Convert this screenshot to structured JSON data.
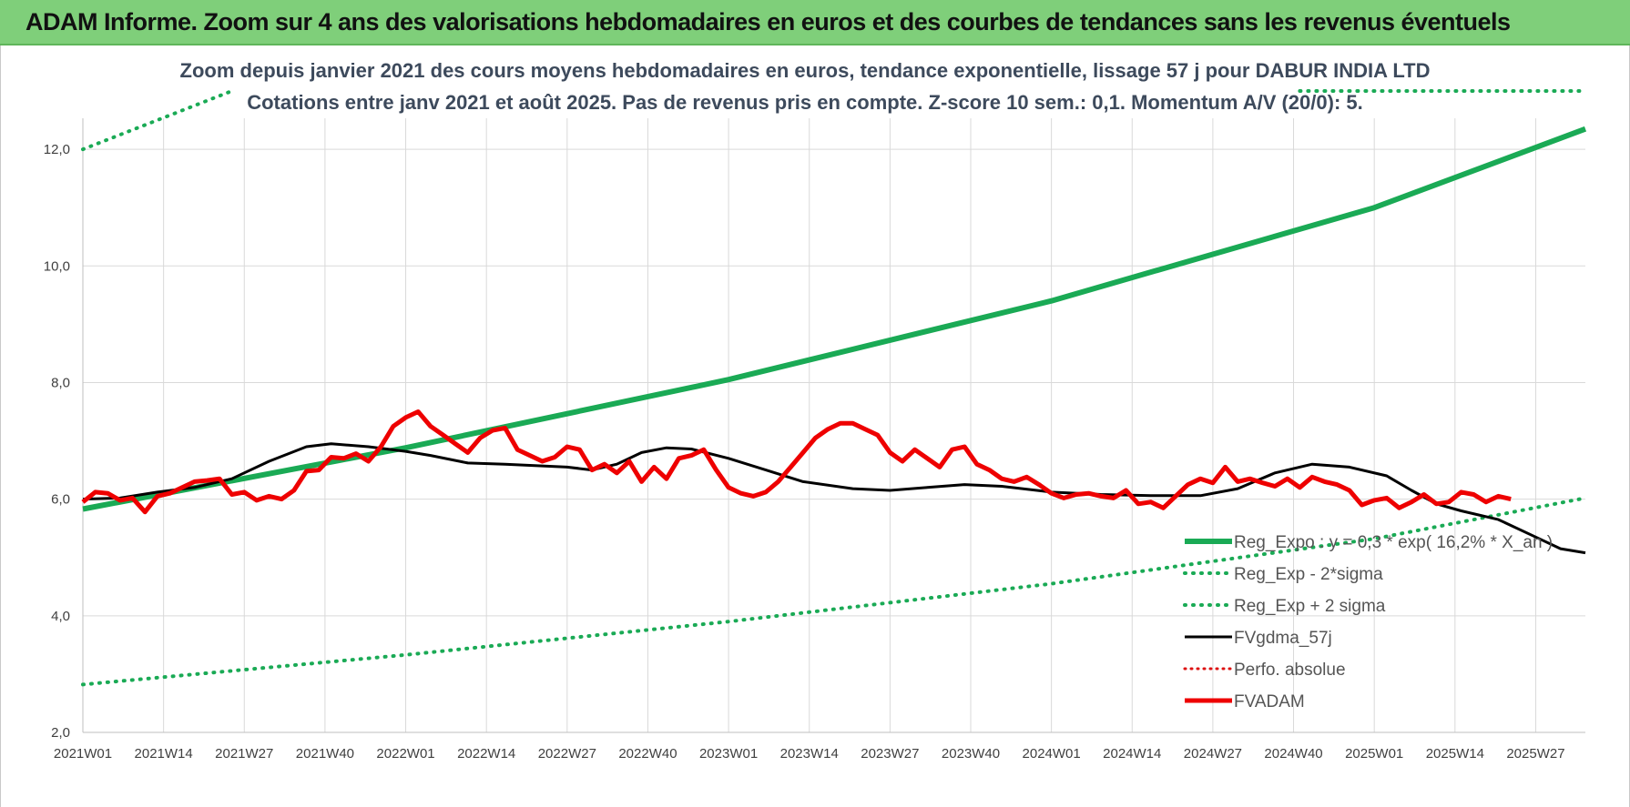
{
  "banner": {
    "title": "ADAM Informe. Zoom sur 4 ans des valorisations hebdomadaires en euros et des courbes de tendances sans les revenus éventuels"
  },
  "colors": {
    "banner": "#7fcf7a",
    "reg_expo": "#1aaa55",
    "sigma": "#1aaa55",
    "fvgdma": "#000000",
    "perfo": "#dd1111",
    "fvadam": "#ee0000",
    "grid": "#d9d9d9"
  },
  "chart_data": {
    "type": "line",
    "title": "Zoom depuis janvier 2021 des cours moyens hebdomadaires en euros, tendance exponentielle, lissage 57 j pour DABUR INDIA LTD",
    "subtitle": "Cotations entre janv 2021 et août 2025. Pas de revenus pris en compte. Z-score 10 sem.: 0,1. Momentum A/V (20/0): 5.",
    "xlabel": "",
    "ylabel": "",
    "grid": true,
    "legend_position": "bottom-right",
    "ylim": [
      2,
      13
    ],
    "y_ticks": [
      "2,0",
      "4,0",
      "6,0",
      "8,0",
      "10,0",
      "12,0"
    ],
    "y_tick_values": [
      2,
      4,
      6,
      8,
      10,
      12
    ],
    "x_ticks": [
      "2021W01",
      "2021W14",
      "2021W27",
      "2021W40",
      "2022W01",
      "2022W14",
      "2022W27",
      "2022W40",
      "2023W01",
      "2023W14",
      "2023W27",
      "2023W40",
      "2024W01",
      "2024W14",
      "2024W27",
      "2024W40",
      "2025W01",
      "2025W14",
      "2025W27"
    ],
    "weeks_count": 243,
    "series": [
      {
        "name": "Reg_Expo : y = 0,3 * exp( 16,2% * X_an )",
        "style": "solid-thick",
        "points": [
          [
            0,
            5.83
          ],
          [
            52,
            6.88
          ],
          [
            104,
            8.05
          ],
          [
            156,
            9.4
          ],
          [
            208,
            11.0
          ],
          [
            242,
            12.35
          ]
        ]
      },
      {
        "name": "Reg_Exp - 2*sigma",
        "style": "dotted",
        "points": [
          [
            0,
            2.82
          ],
          [
            52,
            3.33
          ],
          [
            104,
            3.9
          ],
          [
            156,
            4.55
          ],
          [
            208,
            5.32
          ],
          [
            242,
            6.02
          ]
        ]
      },
      {
        "name": "Reg_Exp + 2 sigma",
        "style": "dotted",
        "points": [
          [
            0,
            12.0
          ],
          [
            24,
            13.0
          ]
        ],
        "points_right": [
          [
            196,
            13.0
          ],
          [
            242,
            13.0
          ]
        ]
      },
      {
        "name": "FVgdma_57j",
        "style": "solid",
        "points": [
          [
            0,
            6.0
          ],
          [
            6,
            6.02
          ],
          [
            12,
            6.12
          ],
          [
            18,
            6.2
          ],
          [
            24,
            6.35
          ],
          [
            30,
            6.65
          ],
          [
            36,
            6.9
          ],
          [
            40,
            6.95
          ],
          [
            46,
            6.9
          ],
          [
            52,
            6.82
          ],
          [
            56,
            6.75
          ],
          [
            62,
            6.62
          ],
          [
            68,
            6.6
          ],
          [
            72,
            6.58
          ],
          [
            78,
            6.55
          ],
          [
            82,
            6.5
          ],
          [
            86,
            6.6
          ],
          [
            90,
            6.8
          ],
          [
            94,
            6.88
          ],
          [
            98,
            6.86
          ],
          [
            104,
            6.7
          ],
          [
            110,
            6.5
          ],
          [
            116,
            6.3
          ],
          [
            124,
            6.18
          ],
          [
            130,
            6.15
          ],
          [
            136,
            6.2
          ],
          [
            142,
            6.25
          ],
          [
            148,
            6.22
          ],
          [
            156,
            6.12
          ],
          [
            164,
            6.08
          ],
          [
            172,
            6.06
          ],
          [
            180,
            6.06
          ],
          [
            186,
            6.18
          ],
          [
            192,
            6.45
          ],
          [
            198,
            6.6
          ],
          [
            204,
            6.55
          ],
          [
            210,
            6.4
          ],
          [
            214,
            6.15
          ],
          [
            218,
            5.92
          ],
          [
            222,
            5.8
          ],
          [
            228,
            5.65
          ],
          [
            234,
            5.35
          ],
          [
            238,
            5.15
          ],
          [
            242,
            5.08
          ]
        ]
      },
      {
        "name": "Perfo. absolue",
        "style": "dotted-red",
        "points": []
      },
      {
        "name": "FVADAM",
        "style": "solid-thick",
        "points": [
          [
            0,
            5.95
          ],
          [
            2,
            6.12
          ],
          [
            4,
            6.1
          ],
          [
            6,
            5.98
          ],
          [
            8,
            6.02
          ],
          [
            10,
            5.78
          ],
          [
            12,
            6.05
          ],
          [
            14,
            6.1
          ],
          [
            16,
            6.2
          ],
          [
            18,
            6.3
          ],
          [
            20,
            6.32
          ],
          [
            22,
            6.35
          ],
          [
            24,
            6.08
          ],
          [
            26,
            6.12
          ],
          [
            28,
            5.98
          ],
          [
            30,
            6.05
          ],
          [
            32,
            6.0
          ],
          [
            34,
            6.15
          ],
          [
            36,
            6.48
          ],
          [
            38,
            6.5
          ],
          [
            40,
            6.72
          ],
          [
            42,
            6.7
          ],
          [
            44,
            6.78
          ],
          [
            46,
            6.65
          ],
          [
            48,
            6.9
          ],
          [
            50,
            7.25
          ],
          [
            52,
            7.4
          ],
          [
            54,
            7.5
          ],
          [
            56,
            7.25
          ],
          [
            58,
            7.1
          ],
          [
            60,
            6.95
          ],
          [
            62,
            6.8
          ],
          [
            64,
            7.05
          ],
          [
            66,
            7.18
          ],
          [
            68,
            7.22
          ],
          [
            70,
            6.85
          ],
          [
            72,
            6.75
          ],
          [
            74,
            6.65
          ],
          [
            76,
            6.72
          ],
          [
            78,
            6.9
          ],
          [
            80,
            6.85
          ],
          [
            82,
            6.5
          ],
          [
            84,
            6.6
          ],
          [
            86,
            6.45
          ],
          [
            88,
            6.65
          ],
          [
            90,
            6.3
          ],
          [
            92,
            6.55
          ],
          [
            94,
            6.35
          ],
          [
            96,
            6.7
          ],
          [
            98,
            6.75
          ],
          [
            100,
            6.85
          ],
          [
            102,
            6.5
          ],
          [
            104,
            6.2
          ],
          [
            106,
            6.1
          ],
          [
            108,
            6.05
          ],
          [
            110,
            6.12
          ],
          [
            112,
            6.3
          ],
          [
            114,
            6.55
          ],
          [
            116,
            6.8
          ],
          [
            118,
            7.05
          ],
          [
            120,
            7.2
          ],
          [
            122,
            7.3
          ],
          [
            124,
            7.3
          ],
          [
            126,
            7.2
          ],
          [
            128,
            7.1
          ],
          [
            130,
            6.8
          ],
          [
            132,
            6.65
          ],
          [
            134,
            6.85
          ],
          [
            136,
            6.7
          ],
          [
            138,
            6.55
          ],
          [
            140,
            6.85
          ],
          [
            142,
            6.9
          ],
          [
            144,
            6.6
          ],
          [
            146,
            6.5
          ],
          [
            148,
            6.35
          ],
          [
            150,
            6.3
          ],
          [
            152,
            6.38
          ],
          [
            154,
            6.25
          ],
          [
            156,
            6.1
          ],
          [
            158,
            6.02
          ],
          [
            160,
            6.08
          ],
          [
            162,
            6.1
          ],
          [
            164,
            6.05
          ],
          [
            166,
            6.02
          ],
          [
            168,
            6.15
          ],
          [
            170,
            5.92
          ],
          [
            172,
            5.95
          ],
          [
            174,
            5.85
          ],
          [
            176,
            6.05
          ],
          [
            178,
            6.25
          ],
          [
            180,
            6.35
          ],
          [
            182,
            6.28
          ],
          [
            184,
            6.55
          ],
          [
            186,
            6.3
          ],
          [
            188,
            6.35
          ],
          [
            190,
            6.28
          ],
          [
            192,
            6.22
          ],
          [
            194,
            6.35
          ],
          [
            196,
            6.2
          ],
          [
            198,
            6.38
          ],
          [
            200,
            6.3
          ],
          [
            202,
            6.25
          ],
          [
            204,
            6.15
          ],
          [
            206,
            5.9
          ],
          [
            208,
            5.98
          ],
          [
            210,
            6.02
          ],
          [
            212,
            5.85
          ],
          [
            214,
            5.95
          ],
          [
            216,
            6.08
          ],
          [
            218,
            5.92
          ],
          [
            220,
            5.95
          ],
          [
            222,
            6.12
          ],
          [
            224,
            6.08
          ],
          [
            226,
            5.95
          ],
          [
            228,
            6.05
          ],
          [
            230,
            6.0
          ]
        ]
      }
    ]
  },
  "legend": {
    "items": [
      {
        "label": "Reg_Expo : y = 0,3 * exp( 16,2% * X_an )",
        "style": "solid-thick-green"
      },
      {
        "label": "Reg_Exp - 2*sigma",
        "style": "dotted-green"
      },
      {
        "label": "Reg_Exp + 2 sigma",
        "style": "dotted-green"
      },
      {
        "label": "FVgdma_57j",
        "style": "solid-black"
      },
      {
        "label": "Perfo. absolue",
        "style": "dotted-red"
      },
      {
        "label": "FVADAM",
        "style": "solid-thick-red"
      }
    ]
  }
}
